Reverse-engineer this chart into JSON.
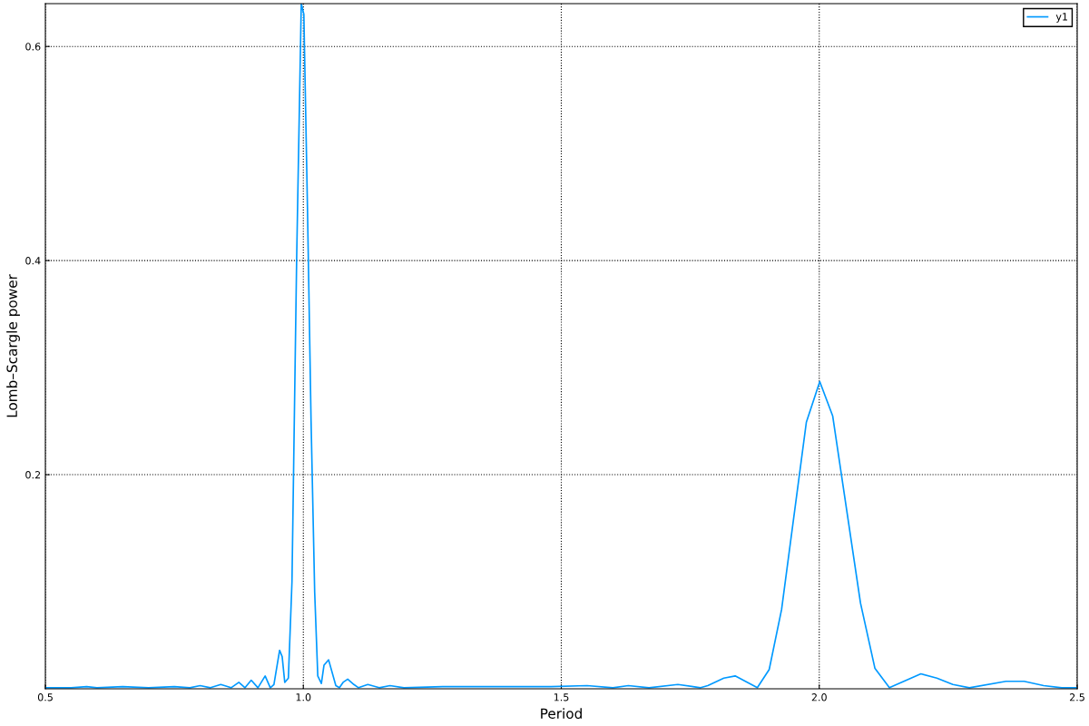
{
  "chart_data": {
    "type": "line",
    "xlabel": "Period",
    "ylabel": "Lomb–Scargle power",
    "xlim": [
      0.5,
      2.5
    ],
    "ylim": [
      0,
      0.64
    ],
    "xticks": [
      {
        "value": 0.5,
        "label": "0.5"
      },
      {
        "value": 1.0,
        "label": "1.0"
      },
      {
        "value": 1.5,
        "label": "1.5"
      },
      {
        "value": 2.0,
        "label": "2.0"
      },
      {
        "value": 2.5,
        "label": "2.5"
      }
    ],
    "yticks": [
      0.2,
      0.4,
      0.6
    ],
    "grid": true,
    "legend": "top right",
    "line_style": "solid",
    "marker": "none",
    "series": [
      {
        "name": "y1",
        "color": "#0099ff",
        "x": [
          0.5,
          0.55,
          0.58,
          0.6,
          0.65,
          0.7,
          0.75,
          0.78,
          0.8,
          0.82,
          0.84,
          0.86,
          0.875,
          0.887,
          0.899,
          0.912,
          0.926,
          0.936,
          0.943,
          0.954,
          0.959,
          0.964,
          0.971,
          0.978,
          0.987,
          0.996,
          1.001,
          1.008,
          1.015,
          1.022,
          1.028,
          1.035,
          1.04,
          1.049,
          1.063,
          1.07,
          1.077,
          1.086,
          1.098,
          1.107,
          1.125,
          1.147,
          1.168,
          1.195,
          1.27,
          1.4,
          1.48,
          1.55,
          1.6,
          1.63,
          1.67,
          1.726,
          1.77,
          1.784,
          1.815,
          1.837,
          1.88,
          1.903,
          1.927,
          1.975,
          2.001,
          2.026,
          2.08,
          2.108,
          2.136,
          2.197,
          2.228,
          2.259,
          2.291,
          2.362,
          2.397,
          2.435,
          2.47,
          2.5
        ],
        "values": [
          0.001,
          0.001,
          0.002,
          0.001,
          0.002,
          0.001,
          0.002,
          0.001,
          0.003,
          0.001,
          0.004,
          0.001,
          0.006,
          0.001,
          0.008,
          0.001,
          0.012,
          0.001,
          0.004,
          0.036,
          0.03,
          0.006,
          0.01,
          0.1,
          0.4,
          0.64,
          0.63,
          0.45,
          0.25,
          0.09,
          0.012,
          0.005,
          0.022,
          0.027,
          0.003,
          0.001,
          0.006,
          0.009,
          0.004,
          0.001,
          0.004,
          0.001,
          0.003,
          0.001,
          0.002,
          0.002,
          0.002,
          0.003,
          0.001,
          0.003,
          0.001,
          0.004,
          0.001,
          0.003,
          0.01,
          0.012,
          0.001,
          0.018,
          0.074,
          0.249,
          0.287,
          0.255,
          0.08,
          0.019,
          0.001,
          0.014,
          0.01,
          0.004,
          0.001,
          0.007,
          0.007,
          0.003,
          0.001,
          0.001
        ]
      }
    ]
  }
}
